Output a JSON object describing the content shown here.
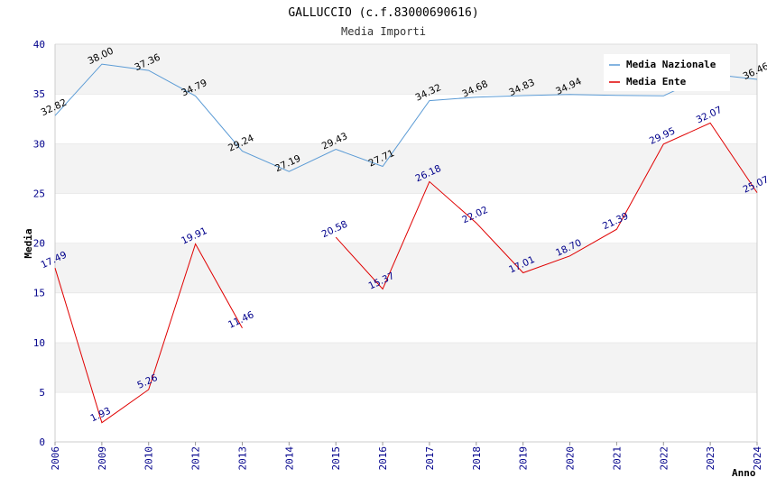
{
  "chart_data": {
    "type": "line",
    "title": "GALLUCCIO (c.f.83000690616)",
    "subtitle": "Media Importi",
    "xlabel": "Anno",
    "ylabel": "Media",
    "ylim": [
      0,
      40
    ],
    "yticks": [
      "0",
      "5",
      "10",
      "15",
      "20",
      "25",
      "30",
      "35",
      "40"
    ],
    "categories": [
      "2006",
      "2009",
      "2010",
      "2012",
      "2013",
      "2014",
      "2015",
      "2016",
      "2017",
      "2018",
      "2019",
      "2020",
      "2021",
      "2022",
      "2023",
      "2024"
    ],
    "grid": true,
    "legend_position": "top-right",
    "series": [
      {
        "name": "Media Nazionale",
        "color": "#5b9bd5",
        "values": [
          32.82,
          38.0,
          37.36,
          34.79,
          29.24,
          27.19,
          29.43,
          27.71,
          34.32,
          34.68,
          34.83,
          34.94,
          34.85,
          34.8,
          37.0,
          36.46
        ],
        "labels": [
          "32.82",
          "38.00",
          "37.36",
          "34.79",
          "29.24",
          "27.19",
          "29.43",
          "27.71",
          "34.32",
          "34.68",
          "34.83",
          "34.94",
          "",
          "",
          "",
          "36.46"
        ]
      },
      {
        "name": "Media Ente",
        "color": "#e00000",
        "values": [
          17.49,
          1.93,
          5.26,
          19.91,
          11.46,
          null,
          20.58,
          15.37,
          26.18,
          22.02,
          17.01,
          18.7,
          21.39,
          29.95,
          32.07,
          25.07
        ],
        "labels": [
          "17.49",
          "1.93",
          "5.26",
          "19.91",
          "11.46",
          "",
          "20.58",
          "15.37",
          "26.18",
          "22.02",
          "17.01",
          "18.70",
          "21.39",
          "29.95",
          "32.07",
          "25.07"
        ]
      }
    ]
  }
}
